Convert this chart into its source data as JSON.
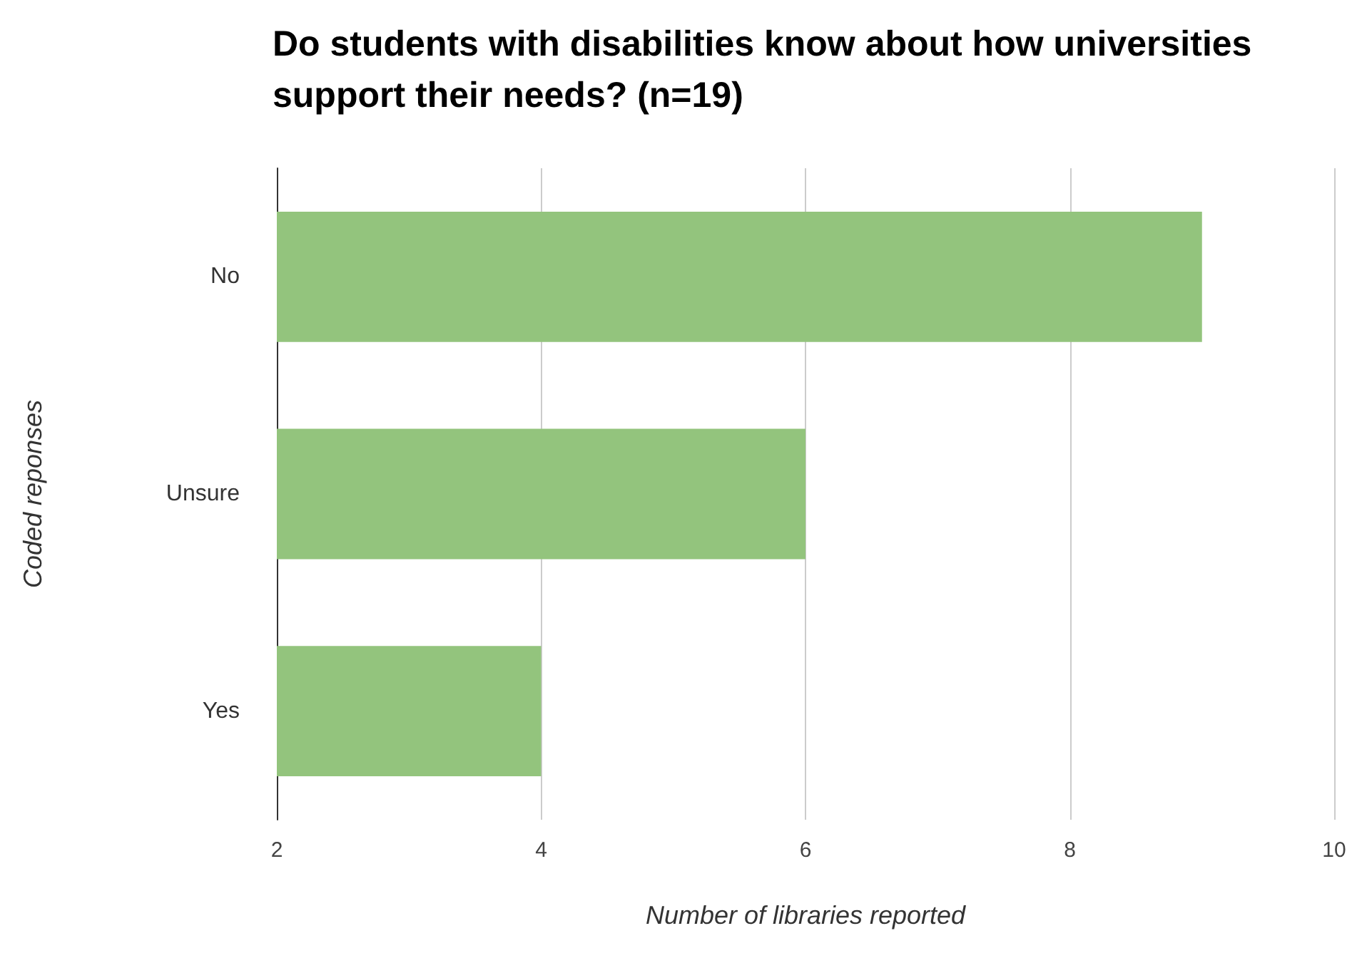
{
  "chart_data": {
    "type": "bar",
    "orientation": "horizontal",
    "title": "Do students with disabilities know about how universities support their needs? (n=19)",
    "xlabel": "Number of libraries reported",
    "ylabel": "Coded reponses",
    "categories": [
      "No",
      "Unsure",
      "Yes"
    ],
    "values": [
      9,
      6,
      4
    ],
    "color": "#93c47d",
    "xlim": [
      2,
      10
    ],
    "xticks": [
      2,
      4,
      6,
      8,
      10
    ],
    "grid": "x"
  }
}
